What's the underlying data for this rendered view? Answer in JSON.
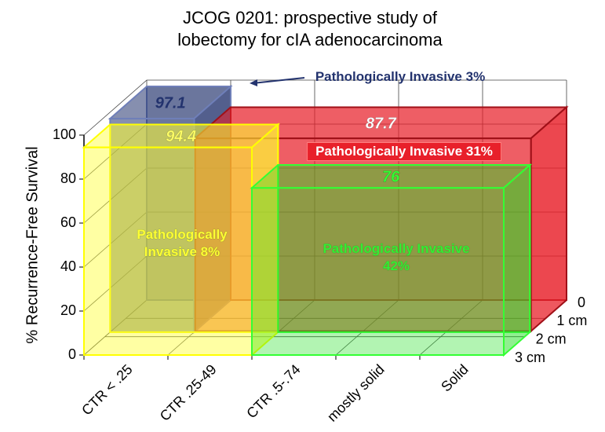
{
  "chart_data": {
    "type": "box3d",
    "title": [
      "JCOG 0201: prospective study of",
      "lobectomy for cIA adenocarcinoma"
    ],
    "y_label": "% Recurrence-Free Survival",
    "categories": [
      "CTR < .25",
      "CTR .25-49",
      "CTR .5-.74",
      "mostly solid",
      "Solid"
    ],
    "ylim": [
      0,
      100
    ],
    "yticks": [
      0,
      20,
      40,
      60,
      80,
      100
    ],
    "zlim": [
      0,
      3
    ],
    "zticks": [
      0,
      {
        "value": 1,
        "label": "1 cm"
      },
      {
        "value": 2,
        "label": "2 cm"
      },
      {
        "value": 3,
        "label": "3 cm"
      }
    ],
    "grid": true,
    "series": [
      {
        "name": "Pathologically Invasive 3%",
        "color": "#23336e",
        "values": [
          97.1
        ]
      },
      {
        "name": "Pathologically Invasive 31%",
        "color": "#e8202a",
        "values": [
          87.7
        ]
      },
      {
        "name": "Pathologically Invasive 8%",
        "color": "#ffff33",
        "values": [
          94.4
        ]
      },
      {
        "name": "Pathologically Invasive 42%",
        "color": "#22e022",
        "values": [
          76
        ]
      }
    ]
  }
}
